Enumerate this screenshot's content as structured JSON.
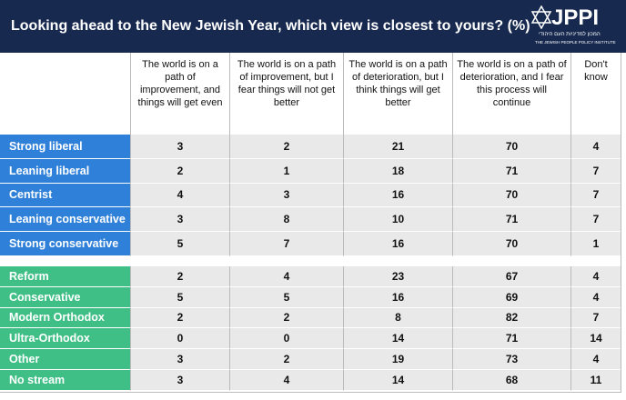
{
  "header": {
    "title": "Looking ahead to the New Jewish Year, which view is closest to yours? (%)",
    "logo": "JPPI",
    "logo_hebrew": "המכון למדיניות העם היהודי",
    "logo_subtitle": "THE JEWISH PEOPLE POLICY INSTITUTE"
  },
  "table": {
    "columns": [
      "The world is on a path of improvement, and things will get even",
      "The world is on a path of improvement, but I fear things will not get better",
      "The world is on a path of deterioration, but I think things will get better",
      "The world is on a path of deterioration, and I fear this process will continue",
      "Don't know"
    ],
    "groups": [
      {
        "rows": [
          {
            "label": "Strong liberal",
            "values": [
              3,
              2,
              21,
              70,
              4
            ]
          },
          {
            "label": "Leaning liberal",
            "values": [
              2,
              1,
              18,
              71,
              7
            ]
          },
          {
            "label": "Centrist",
            "values": [
              4,
              3,
              16,
              70,
              7
            ]
          },
          {
            "label": "Leaning conservative",
            "values": [
              3,
              8,
              10,
              71,
              7
            ]
          },
          {
            "label": "Strong conservative",
            "values": [
              5,
              7,
              16,
              70,
              1
            ]
          }
        ]
      },
      {
        "rows": [
          {
            "label": "Reform",
            "values": [
              2,
              4,
              23,
              67,
              4
            ]
          },
          {
            "label": "Conservative",
            "values": [
              5,
              5,
              16,
              69,
              4
            ]
          },
          {
            "label": "Modern Orthodox",
            "values": [
              2,
              2,
              8,
              82,
              7
            ]
          },
          {
            "label": "Ultra-Orthodox",
            "values": [
              0,
              0,
              14,
              71,
              14
            ]
          },
          {
            "label": "Other",
            "values": [
              3,
              2,
              19,
              73,
              4
            ]
          },
          {
            "label": "No stream",
            "values": [
              3,
              4,
              14,
              68,
              11
            ]
          }
        ]
      }
    ]
  }
}
